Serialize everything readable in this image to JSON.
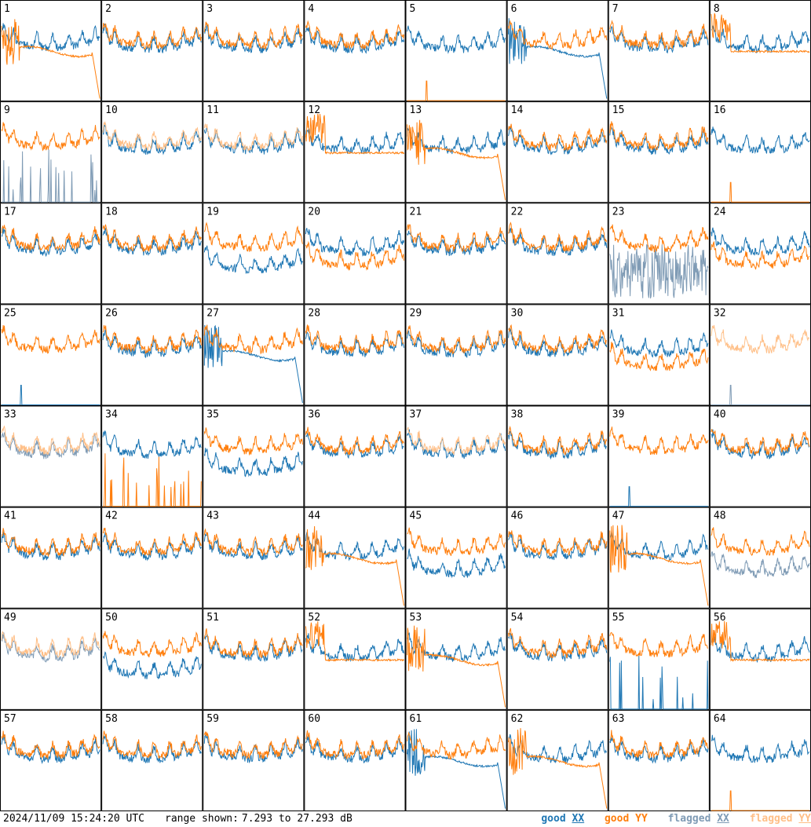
{
  "chart_data": {
    "type": "line",
    "layout": "8x8 small multiples",
    "panel_labels": [
      "1",
      "2",
      "3",
      "4",
      "5",
      "6",
      "7",
      "8",
      "9",
      "10",
      "11",
      "12",
      "13",
      "14",
      "15",
      "16",
      "17",
      "18",
      "19",
      "20",
      "21",
      "22",
      "23",
      "24",
      "25",
      "26",
      "27",
      "28",
      "29",
      "30",
      "31",
      "32",
      "33",
      "34",
      "35",
      "36",
      "37",
      "38",
      "39",
      "40",
      "41",
      "42",
      "43",
      "44",
      "45",
      "46",
      "47",
      "48",
      "49",
      "50",
      "51",
      "52",
      "53",
      "54",
      "55",
      "56",
      "57",
      "58",
      "59",
      "60",
      "61",
      "62",
      "63",
      "64"
    ],
    "range_db": [
      7.293,
      27.293
    ],
    "ylim": [
      7.293,
      27.293
    ],
    "series": [
      {
        "name": "good XX",
        "color": "#1f77b4"
      },
      {
        "name": "good YY",
        "color": "#ff7f0e"
      },
      {
        "name": "flagged XX",
        "color": "#7f9bb5"
      },
      {
        "name": "flagged YY",
        "color": "#ffbf87"
      }
    ],
    "panels": {
      "1": {
        "xx": "good",
        "yy": "good",
        "yy_shape": "plateau-rolloff",
        "xx_shape": "ripple"
      },
      "5": {
        "xx": "good",
        "yy": "good",
        "yy_shape": "flat-low"
      },
      "6": {
        "xx": "good",
        "yy": "good",
        "xx_shape": "plateau-rolloff"
      },
      "8": {
        "yy_shape": "plateau"
      },
      "9": {
        "xx": "flagged",
        "xx_shape": "spiky-low"
      },
      "10": {
        "yy": "flagged"
      },
      "11": {
        "yy": "flagged"
      },
      "12": {
        "yy_shape": "plateau"
      },
      "13": {
        "yy_shape": "plateau-rolloff"
      },
      "16": {
        "yy_shape": "flat-low"
      },
      "19": {
        "xx_shape": "lower"
      },
      "20": {
        "yy_shape": "lower"
      },
      "23": {
        "xx": "flagged",
        "xx_shape": "spiky-mid"
      },
      "24": {
        "yy_shape": "lower"
      },
      "25": {
        "xx_shape": "flat-low"
      },
      "27": {
        "xx_shape": "plateau-rolloff"
      },
      "31": {
        "yy_shape": "lower"
      },
      "32": {
        "yy": "flagged",
        "xx": "flagged",
        "xx_shape": "flat-low"
      },
      "33": {
        "xx": "flagged",
        "yy": "flagged"
      },
      "34": {
        "yy_shape": "spiky-low"
      },
      "35": {
        "xx_shape": "lower"
      },
      "37": {
        "yy": "flagged"
      },
      "39": {
        "xx_shape": "flat-low"
      },
      "44": {
        "yy_shape": "plateau-rolloff"
      },
      "45": {
        "xx_shape": "lower"
      },
      "47": {
        "yy_shape": "plateau-rolloff"
      },
      "48": {
        "xx": "flagged",
        "xx_shape": "lower"
      },
      "49": {
        "xx": "flagged",
        "yy": "flagged"
      },
      "50": {
        "xx_shape": "lower"
      },
      "52": {
        "yy_shape": "plateau"
      },
      "53": {
        "yy_shape": "plateau-rolloff"
      },
      "55": {
        "xx_shape": "spiky-low"
      },
      "56": {
        "yy_shape": "plateau"
      },
      "61": {
        "xx_shape": "plateau-rolloff"
      },
      "62": {
        "yy_shape": "plateau-rolloff"
      },
      "64": {
        "yy_shape": "flat-low"
      }
    }
  },
  "footer": {
    "timestamp": "2024/11/09 15:24:20 UTC",
    "range_prefix": "range shown:",
    "range_text": "7.293 to 27.293 dB"
  },
  "legend": {
    "good_xx": {
      "label_prefix": "good ",
      "label_pol": "XX",
      "color": "#1f77b4"
    },
    "good_yy": {
      "label_prefix": "good ",
      "label_pol": "YY",
      "color": "#ff7f0e"
    },
    "flagged_xx": {
      "label_prefix": "flagged ",
      "label_pol": "XX",
      "color": "#7f9bb5"
    },
    "flagged_yy": {
      "label_prefix": "flagged ",
      "label_pol": "YY",
      "color": "#ffbf87"
    }
  }
}
